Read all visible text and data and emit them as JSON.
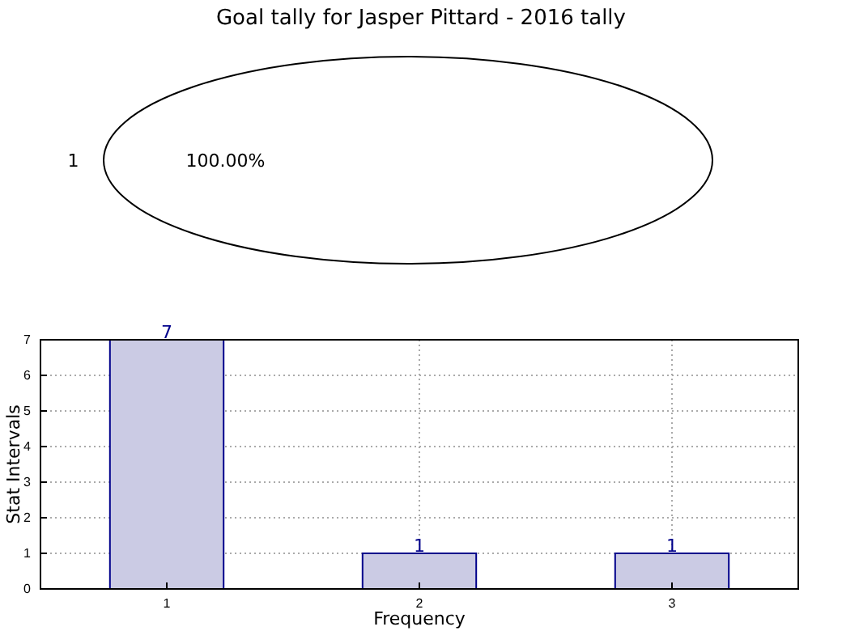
{
  "chart_data": [
    {
      "type": "pie",
      "title": "Goal tally for Jasper Pittard - 2016 tally",
      "categories": [
        "1"
      ],
      "values": [
        100
      ],
      "colors": [
        "#ffffff"
      ],
      "value_labels": [
        "100.00%"
      ]
    },
    {
      "type": "bar",
      "categories": [
        "1",
        "2",
        "3"
      ],
      "values": [
        7,
        1,
        1
      ],
      "color": "#cbcbe4",
      "ylim": [
        0,
        7
      ],
      "yticks": [
        0,
        1,
        2,
        3,
        4,
        5,
        6,
        7
      ],
      "grid": true,
      "data_labels": true,
      "xlabel": "Frequency",
      "ylabel": "Stat Intervals"
    }
  ]
}
